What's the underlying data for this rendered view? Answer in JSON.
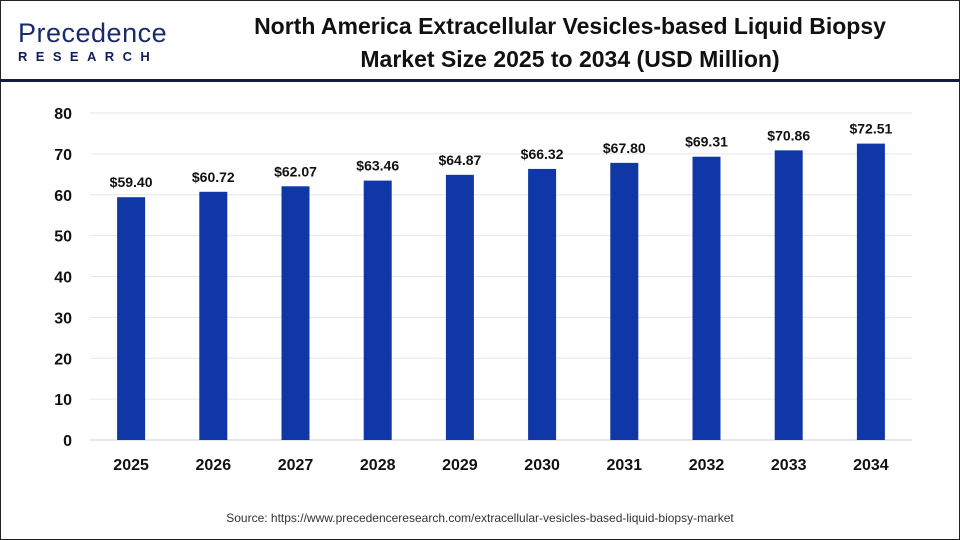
{
  "logo": {
    "text_top": "Precedence",
    "text_bottom": "RESEARCH"
  },
  "title_line1": "North America Extracellular Vesicles-based Liquid Biopsy",
  "title_line2": "Market Size 2025 to 2034 (USD Million)",
  "source": "Source: https://www.precedenceresearch.com/extracellular-vesicles-based-liquid-biopsy-market",
  "colors": {
    "bar": "#0f37a8",
    "header_rule": "#111a4a",
    "grid": "#e6e6e6"
  },
  "chart_data": {
    "type": "bar",
    "categories": [
      "2025",
      "2026",
      "2027",
      "2028",
      "2029",
      "2030",
      "2031",
      "2032",
      "2033",
      "2034"
    ],
    "values": [
      59.4,
      60.72,
      62.07,
      63.46,
      64.87,
      66.32,
      67.8,
      69.31,
      70.86,
      72.51
    ],
    "data_labels": [
      "$59.40",
      "$60.72",
      "$62.07",
      "$63.46",
      "$64.87",
      "$66.32",
      "$67.80",
      "$69.31",
      "$70.86",
      "$72.51"
    ],
    "title": "North America Extracellular Vesicles-based Liquid Biopsy Market Size 2025 to 2034 (USD Million)",
    "xlabel": "",
    "ylabel": "",
    "ylim": [
      0,
      80
    ],
    "yticks": [
      0,
      10,
      20,
      30,
      40,
      50,
      60,
      70,
      80
    ],
    "grid": true,
    "legend": "none"
  }
}
